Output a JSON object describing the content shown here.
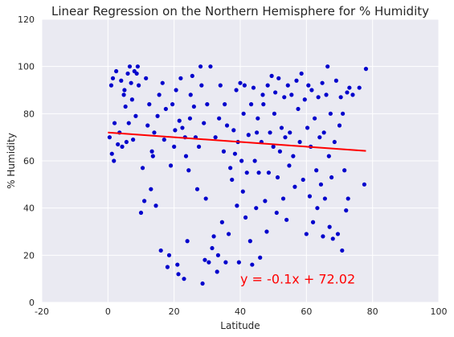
{
  "chart_data": {
    "type": "scatter",
    "title": "Linear Regression on the Northern Hemisphere for % Humidity",
    "xlabel": "Latitude",
    "ylabel": "% Humidity",
    "xlim": [
      -20,
      100
    ],
    "ylim": [
      0,
      120
    ],
    "xticks": [
      -20,
      0,
      20,
      40,
      60,
      80,
      100
    ],
    "yticks": [
      0,
      20,
      40,
      60,
      80,
      100,
      120
    ],
    "grid": true,
    "background": "#eaeaf2",
    "point_color": "#0000cc",
    "series": [
      {
        "values_xy": [
          [
            0.5,
            70
          ],
          [
            1,
            92
          ],
          [
            1.2,
            63
          ],
          [
            1.5,
            95
          ],
          [
            1.8,
            60
          ],
          [
            2,
            76
          ],
          [
            2.5,
            98
          ],
          [
            3,
            67
          ],
          [
            3.5,
            72
          ],
          [
            4,
            94
          ],
          [
            4.3,
            66
          ],
          [
            4.8,
            88
          ],
          [
            5,
            90
          ],
          [
            5.3,
            83
          ],
          [
            5.6,
            68
          ],
          [
            6,
            97
          ],
          [
            6.3,
            76
          ],
          [
            6.6,
            100
          ],
          [
            7,
            93
          ],
          [
            7.3,
            86
          ],
          [
            7.6,
            69
          ],
          [
            8,
            98
          ],
          [
            8.4,
            79
          ],
          [
            8.7,
            97
          ],
          [
            9,
            100
          ],
          [
            9.3,
            92
          ],
          [
            10,
            38
          ],
          [
            10.5,
            57
          ],
          [
            11,
            43
          ],
          [
            11.5,
            95
          ],
          [
            12,
            75
          ],
          [
            12.5,
            84
          ],
          [
            13,
            48
          ],
          [
            13.3,
            64
          ],
          [
            13.6,
            62
          ],
          [
            14,
            72
          ],
          [
            14.5,
            41
          ],
          [
            15,
            79
          ],
          [
            15.5,
            88
          ],
          [
            16,
            22
          ],
          [
            16.5,
            93
          ],
          [
            17,
            69
          ],
          [
            17.5,
            82
          ],
          [
            18,
            15
          ],
          [
            18.5,
            20
          ],
          [
            19,
            58
          ],
          [
            19.5,
            84
          ],
          [
            20,
            66
          ],
          [
            20.3,
            73
          ],
          [
            20.6,
            90
          ],
          [
            21,
            16
          ],
          [
            21.3,
            12
          ],
          [
            21.6,
            77
          ],
          [
            22,
            95
          ],
          [
            22.5,
            74
          ],
          [
            23,
            10
          ],
          [
            23.3,
            70
          ],
          [
            23.6,
            62
          ],
          [
            24,
            26
          ],
          [
            24.4,
            56
          ],
          [
            24.8,
            78
          ],
          [
            25,
            88
          ],
          [
            25.5,
            96
          ],
          [
            26,
            83
          ],
          [
            26.5,
            70
          ],
          [
            27,
            48
          ],
          [
            27.5,
            66
          ],
          [
            28,
            100
          ],
          [
            28.3,
            92
          ],
          [
            28.6,
            8
          ],
          [
            29,
            76
          ],
          [
            29.3,
            18
          ],
          [
            29.6,
            44
          ],
          [
            30,
            84
          ],
          [
            30.5,
            17
          ],
          [
            31,
            100
          ],
          [
            31.5,
            23
          ],
          [
            32,
            28
          ],
          [
            32.5,
            70
          ],
          [
            33,
            13
          ],
          [
            33.3,
            20
          ],
          [
            33.6,
            78
          ],
          [
            34,
            92
          ],
          [
            34.5,
            34
          ],
          [
            35,
            64
          ],
          [
            35.3,
            84
          ],
          [
            35.6,
            17
          ],
          [
            36,
            75
          ],
          [
            36.5,
            29
          ],
          [
            37,
            57
          ],
          [
            37.5,
            52
          ],
          [
            38,
            73
          ],
          [
            38.4,
            63
          ],
          [
            38.8,
            90
          ],
          [
            39,
            41
          ],
          [
            39.3,
            68
          ],
          [
            39.6,
            17
          ],
          [
            40,
            93
          ],
          [
            40.4,
            60
          ],
          [
            40.8,
            47
          ],
          [
            41,
            80
          ],
          [
            41.3,
            92
          ],
          [
            41.6,
            36
          ],
          [
            42,
            55
          ],
          [
            42.5,
            71
          ],
          [
            43,
            26
          ],
          [
            43.3,
            84
          ],
          [
            43.6,
            16
          ],
          [
            44,
            91
          ],
          [
            44.4,
            60
          ],
          [
            44.8,
            40
          ],
          [
            45,
            72
          ],
          [
            45.3,
            78
          ],
          [
            45.6,
            55
          ],
          [
            46,
            19
          ],
          [
            46.4,
            68
          ],
          [
            46.8,
            88
          ],
          [
            47,
            84
          ],
          [
            47.5,
            43
          ],
          [
            48,
            30
          ],
          [
            48.3,
            92
          ],
          [
            48.6,
            55
          ],
          [
            49,
            72
          ],
          [
            49.5,
            96
          ],
          [
            50,
            66
          ],
          [
            50.3,
            80
          ],
          [
            50.6,
            89
          ],
          [
            51,
            38
          ],
          [
            51.3,
            53
          ],
          [
            51.6,
            95
          ],
          [
            52,
            64
          ],
          [
            52.5,
            74
          ],
          [
            53,
            44
          ],
          [
            53.3,
            87
          ],
          [
            53.6,
            70
          ],
          [
            54,
            35
          ],
          [
            54.4,
            92
          ],
          [
            54.8,
            58
          ],
          [
            55,
            72
          ],
          [
            55.5,
            88
          ],
          [
            56,
            62
          ],
          [
            56.5,
            49
          ],
          [
            57,
            94
          ],
          [
            57.5,
            82
          ],
          [
            58,
            68
          ],
          [
            58.5,
            97
          ],
          [
            59,
            52
          ],
          [
            59.5,
            86
          ],
          [
            60,
            29
          ],
          [
            60.3,
            74
          ],
          [
            60.6,
            92
          ],
          [
            61,
            45
          ],
          [
            61.3,
            66
          ],
          [
            61.6,
            90
          ],
          [
            62,
            34
          ],
          [
            62.5,
            78
          ],
          [
            63,
            56
          ],
          [
            63.3,
            40
          ],
          [
            63.6,
            87
          ],
          [
            64,
            70
          ],
          [
            64.4,
            50
          ],
          [
            64.8,
            93
          ],
          [
            65,
            28
          ],
          [
            65.3,
            72
          ],
          [
            65.6,
            44
          ],
          [
            66,
            88
          ],
          [
            66.4,
            100
          ],
          [
            66.8,
            62
          ],
          [
            67,
            32
          ],
          [
            67.3,
            80
          ],
          [
            67.6,
            53
          ],
          [
            68,
            27
          ],
          [
            68.5,
            68
          ],
          [
            69,
            94
          ],
          [
            69.5,
            29
          ],
          [
            70,
            75
          ],
          [
            70.4,
            87
          ],
          [
            70.8,
            22
          ],
          [
            71,
            80
          ],
          [
            71.5,
            56
          ],
          [
            72,
            39
          ],
          [
            72.3,
            89
          ],
          [
            72.6,
            44
          ],
          [
            73,
            91
          ],
          [
            74,
            88
          ],
          [
            76,
            91
          ],
          [
            77.5,
            50
          ],
          [
            78,
            99
          ]
        ]
      }
    ],
    "regression": {
      "slope": -0.1,
      "intercept": 72.02,
      "x_range": [
        0,
        78
      ],
      "color": "#ff0000",
      "equation": "y = -0.1x + 72.02",
      "equation_at": [
        40,
        10
      ]
    }
  }
}
